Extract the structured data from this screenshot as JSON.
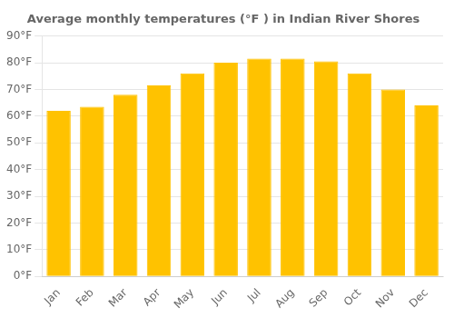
{
  "chart_data": {
    "type": "bar",
    "title": "Average monthly temperatures (°F ) in Indian River Shores",
    "categories": [
      "Jan",
      "Feb",
      "Mar",
      "Apr",
      "May",
      "Jun",
      "Jul",
      "Aug",
      "Sep",
      "Oct",
      "Nov",
      "Dec"
    ],
    "values": [
      62,
      63.5,
      68,
      71.5,
      76,
      80,
      81.5,
      81.5,
      80.5,
      76,
      70,
      64
    ],
    "color": "#FFC200",
    "ylim": [
      0,
      90
    ],
    "yticks": [
      {
        "value": 0,
        "label": "0°F"
      },
      {
        "value": 10,
        "label": "10°F"
      },
      {
        "value": 20,
        "label": "20°F"
      },
      {
        "value": 30,
        "label": "30°F"
      },
      {
        "value": 40,
        "label": "40°F"
      },
      {
        "value": 50,
        "label": "50°F"
      },
      {
        "value": 60,
        "label": "60°F"
      },
      {
        "value": 70,
        "label": "70°F"
      },
      {
        "value": 80,
        "label": "80°F"
      },
      {
        "value": 90,
        "label": "90°F"
      }
    ],
    "grid": true
  }
}
